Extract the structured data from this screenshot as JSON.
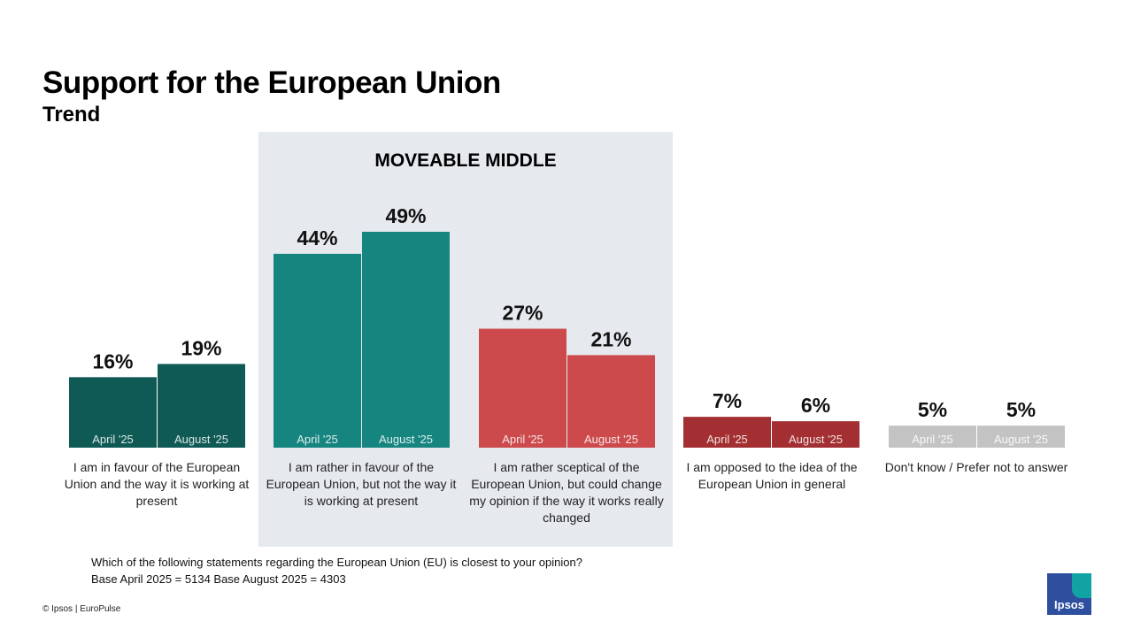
{
  "title": "Support for the European Union",
  "subtitle": "Trend",
  "highlight_label": "MOVEABLE MIDDLE",
  "chart_data": {
    "type": "bar",
    "title": "Support for the European Union",
    "subtitle": "Trend",
    "categories": [
      "I am in favour of the European Union and the way it is working at present",
      "I am rather in favour of the European Union, but not the way it is working at present",
      "I am rather sceptical of the European Union, but could change my opinion if the way it works really changed",
      "I am opposed to the idea of the European Union in general",
      "Don't know / Prefer not to answer"
    ],
    "series": [
      {
        "name": "April '25",
        "values": [
          16,
          44,
          27,
          7,
          5
        ]
      },
      {
        "name": "August '25",
        "values": [
          19,
          49,
          21,
          6,
          5
        ]
      }
    ],
    "value_labels": [
      [
        "16%",
        "19%"
      ],
      [
        "44%",
        "49%"
      ],
      [
        "27%",
        "21%"
      ],
      [
        "7%",
        "6%"
      ],
      [
        "5%",
        "5%"
      ]
    ],
    "colors": [
      [
        "#0f5a55",
        "#0f5a55"
      ],
      [
        "#168580",
        "#168580"
      ],
      [
        "#cc4a4c",
        "#cc4a4c"
      ],
      [
        "#a32f32",
        "#a32f32"
      ],
      [
        "#c3c3c3",
        "#c3c3c3"
      ]
    ],
    "ylim": [
      0,
      70
    ],
    "grid": false,
    "legend": "none"
  },
  "footnote": {
    "question": "Which of the following statements regarding the European Union (EU) is closest to your opinion?",
    "base": "Base  April 2025 = 5134  Base August 2025 = 4303"
  },
  "copyright": "© Ipsos | EuroPulse",
  "logo_text": "Ipsos"
}
